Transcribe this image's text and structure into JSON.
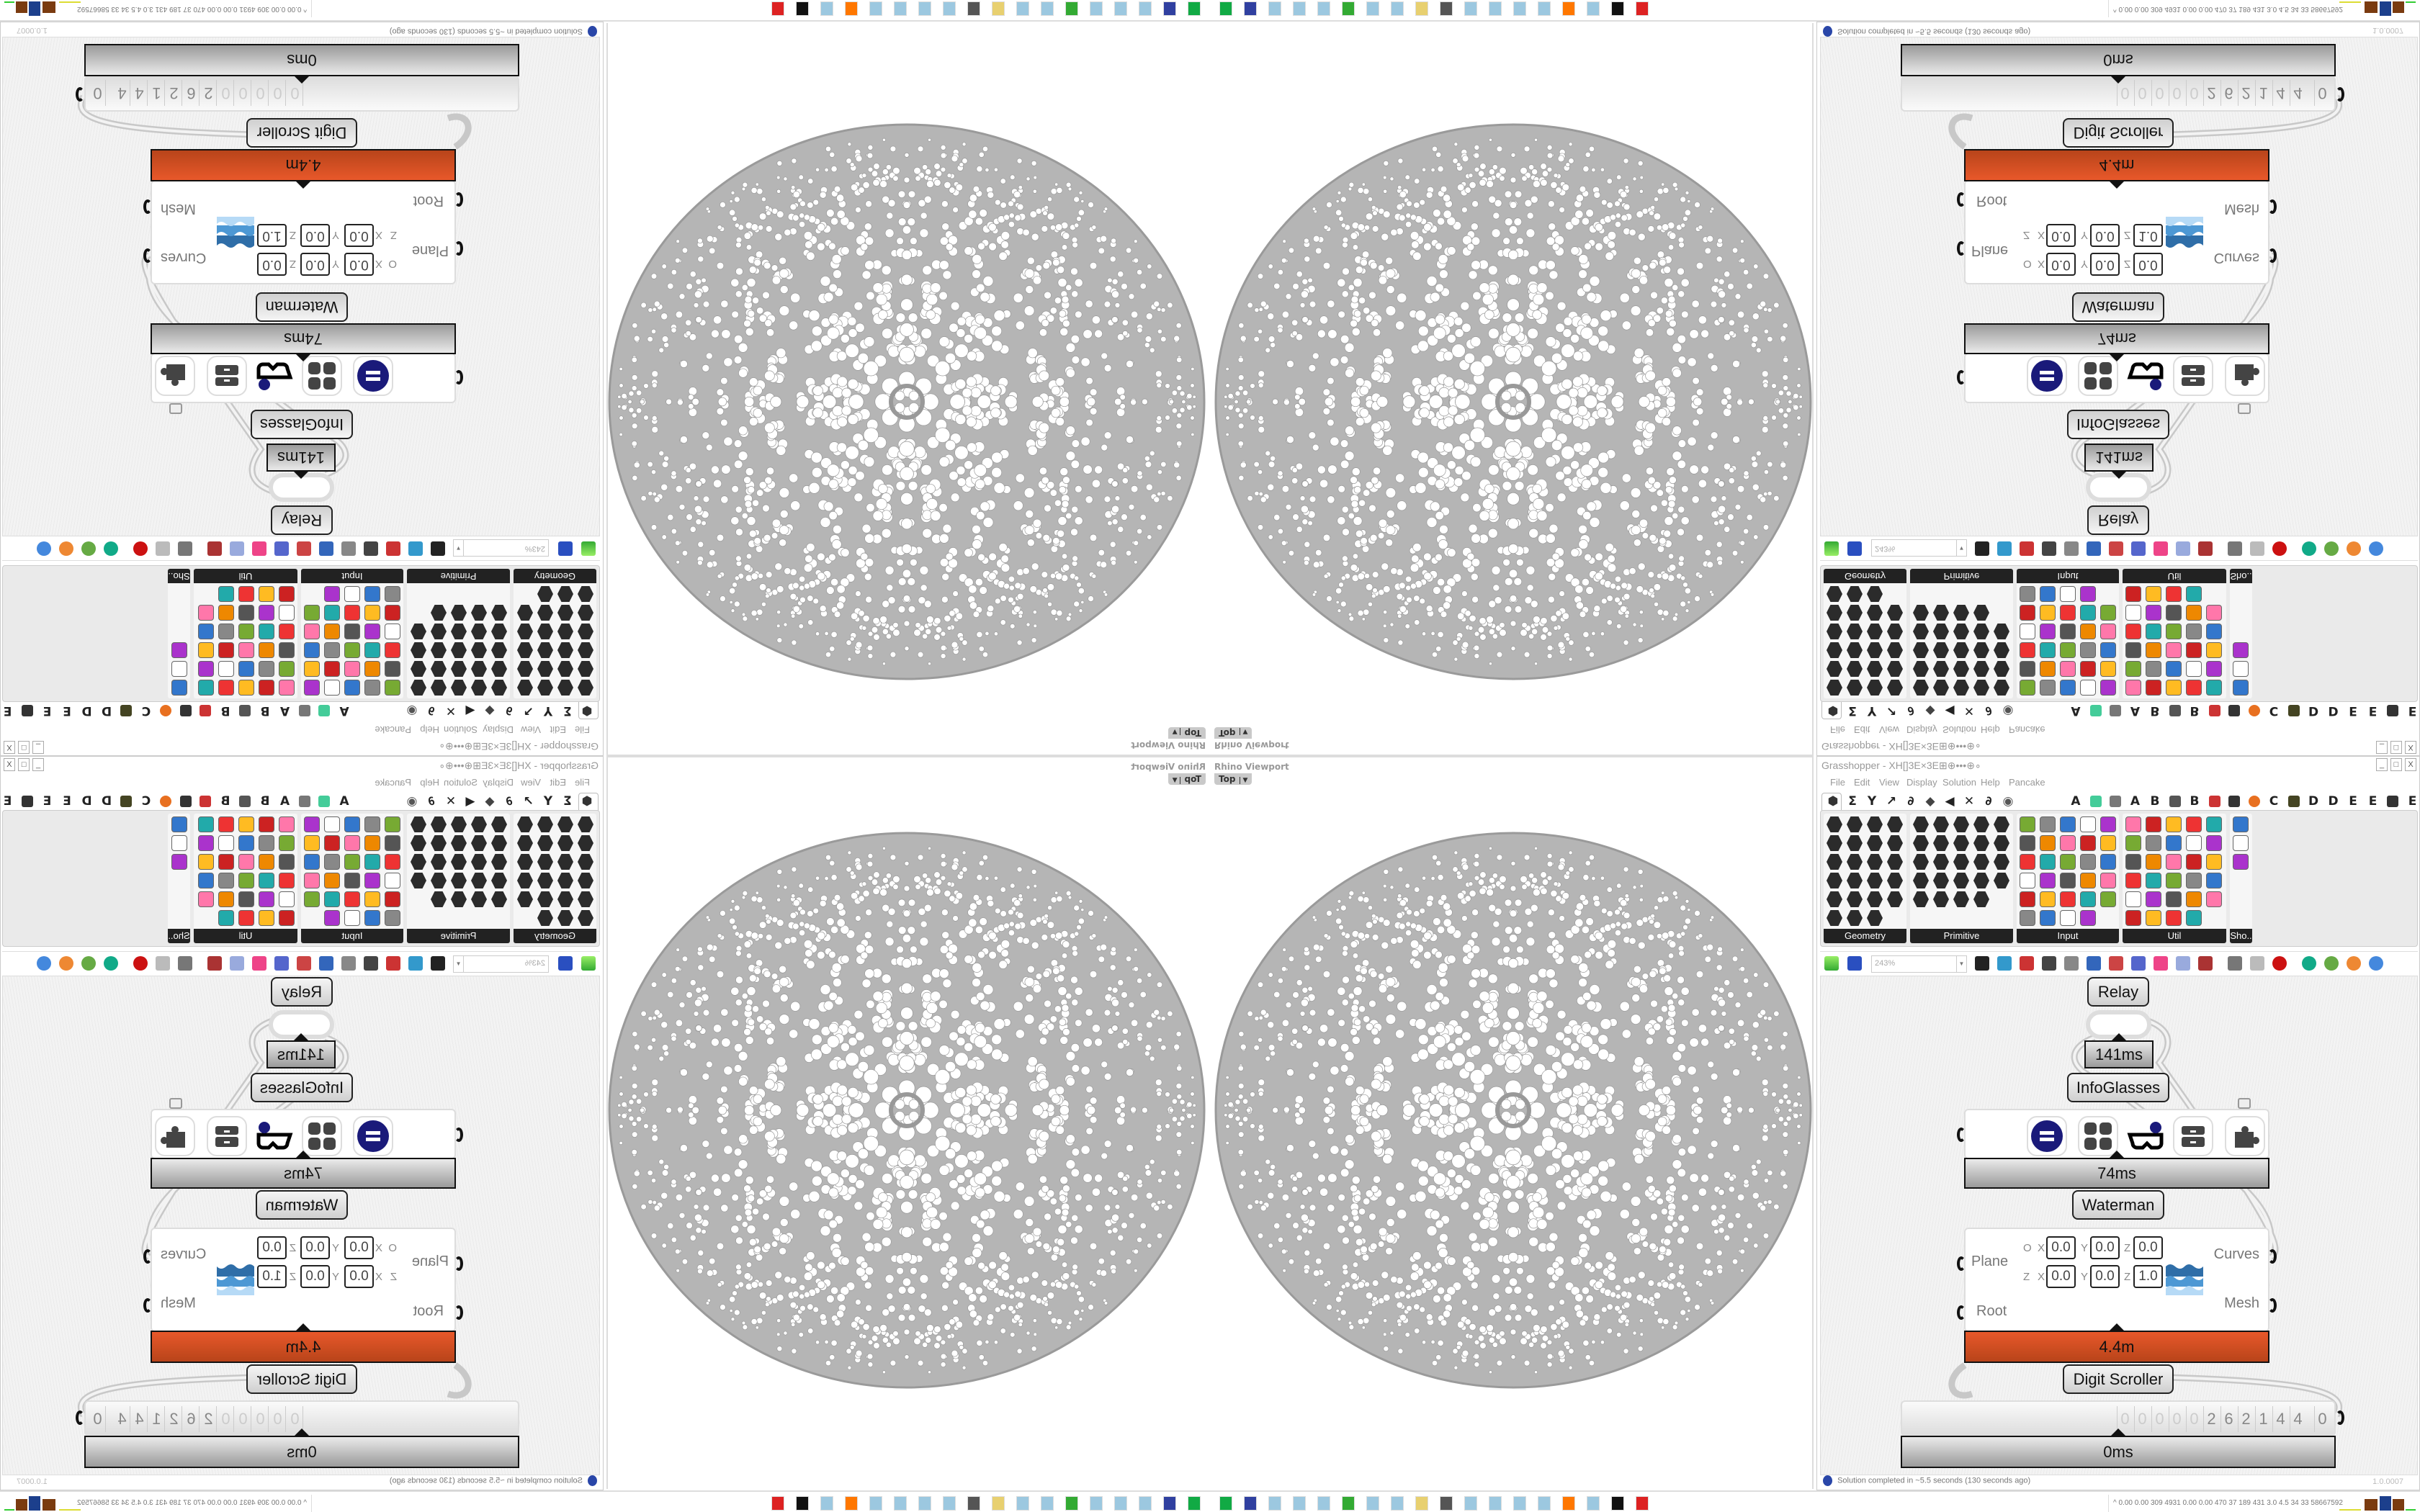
{
  "viewport": {
    "label": "Rhino Viewport",
    "view": "Top",
    "dropdown_icon": "chevron-down-icon"
  },
  "grasshopper": {
    "title": "Grasshopper - XH[]3E×3E⊞⊕•••⊕∘",
    "window_controls": [
      "_",
      "□",
      "X"
    ],
    "menu": [
      "File",
      "Edit",
      "View",
      "Display",
      "Solution",
      "Help",
      "Pancake"
    ],
    "tab_letters": [
      "A",
      "A",
      "B",
      "B",
      "C",
      "D",
      "D",
      "E",
      "E",
      "E"
    ],
    "panels": [
      {
        "label": "Geometry",
        "style": "hex",
        "count": 23
      },
      {
        "label": "Primitive",
        "style": "hex",
        "count": 24
      },
      {
        "label": "Input",
        "style": "color",
        "count": 29
      },
      {
        "label": "Util",
        "style": "color",
        "count": 29
      },
      {
        "label": "Sho..",
        "style": "color",
        "count": 3
      }
    ],
    "toolbar": {
      "zoom": "243%"
    },
    "canvas": {
      "relay_label": "Relay",
      "relay_time": "141ms",
      "infoglasses_label": "InfoGlasses",
      "infoglasses_time": "74ms",
      "waterman_label": "Waterman",
      "waterman_time": "4.4m",
      "waterman": {
        "inputs": [
          "Plane",
          "Root"
        ],
        "outputs": [
          "Curves",
          "Mesh"
        ],
        "origin_label": "O",
        "zaxis_label": "Z",
        "axis_labels": [
          "X",
          "Y",
          "Z"
        ],
        "origin": [
          "0.0",
          "0.0",
          "0.0"
        ],
        "zaxis": [
          "0.0",
          "0.0",
          "1.0"
        ]
      },
      "scroller_label": "Digit Scroller",
      "scroller_digits": [
        "0",
        "0",
        "0",
        "0",
        "0",
        "2",
        "6",
        "2",
        "1",
        "4",
        "4",
        "0"
      ],
      "scroller_time": "0ms"
    },
    "status": {
      "message": "Solution completed in ~5.5 seconds (130 seconds ago)",
      "version": "1.0.0007"
    }
  },
  "taskbar": {
    "icons": [
      "red-app-icon",
      "black-cat-icon",
      "notepad-icon",
      "firefox-icon",
      "notepad-icon",
      "notepad-icon",
      "notepad-icon",
      "notepad-icon",
      "monitor-icon",
      "folder-icon",
      "notepad-icon",
      "notepad-icon",
      "terminal-icon",
      "notepad-icon",
      "notepad-icon",
      "notepad-icon",
      "floppy-64-icon",
      "green-floppy-icon"
    ],
    "tray_text": "0.00 0.00 309 4931 0.00 0.00 470 37 189 431 3.0 4.5 34 33 58667592"
  },
  "colors": {
    "accent_orange": "#e0521f",
    "infoglasses_blue": "#1a1a7a",
    "wire": "#cccccc",
    "sphere": "#aaaaaa"
  }
}
